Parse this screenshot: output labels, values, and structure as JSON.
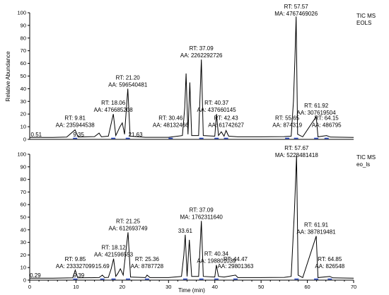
{
  "chart_data": [
    {
      "type": "line",
      "legend": [
        "TIC MS",
        "EOLS"
      ],
      "ylabel": "Relative Abundance",
      "xlim": [
        0,
        70
      ],
      "ylim": [
        0,
        100
      ],
      "xticks": [],
      "yticks": [
        0,
        10,
        20,
        30,
        40,
        50,
        60,
        70,
        80,
        90,
        100
      ],
      "trace": [
        [
          0,
          1.5
        ],
        [
          5,
          1.5
        ],
        [
          8,
          1.8
        ],
        [
          9.8,
          7.5
        ],
        [
          10.5,
          1.8
        ],
        [
          14,
          2.2
        ],
        [
          15,
          5
        ],
        [
          15.5,
          2
        ],
        [
          17,
          2.5
        ],
        [
          18.06,
          20
        ],
        [
          18.6,
          3
        ],
        [
          19,
          6
        ],
        [
          19.5,
          10
        ],
        [
          20,
          13
        ],
        [
          20.5,
          4
        ],
        [
          21.2,
          40
        ],
        [
          21.7,
          2.5
        ],
        [
          25,
          1.6
        ],
        [
          30,
          1.6
        ],
        [
          33,
          3
        ],
        [
          33.5,
          25
        ],
        [
          33.8,
          52
        ],
        [
          34.2,
          4
        ],
        [
          34.6,
          45
        ],
        [
          35,
          3
        ],
        [
          36.5,
          3
        ],
        [
          37.09,
          63
        ],
        [
          37.5,
          3
        ],
        [
          40,
          2.5
        ],
        [
          40.37,
          20
        ],
        [
          40.8,
          3
        ],
        [
          41.4,
          6
        ],
        [
          42,
          2.5
        ],
        [
          42.43,
          7
        ],
        [
          43,
          2.5
        ],
        [
          45,
          2
        ],
        [
          50,
          2
        ],
        [
          55,
          2.2
        ],
        [
          56.5,
          2.5
        ],
        [
          57,
          30
        ],
        [
          57.3,
          62
        ],
        [
          57.57,
          97
        ],
        [
          57.9,
          4
        ],
        [
          59,
          2
        ],
        [
          61.92,
          18
        ],
        [
          62.3,
          2
        ],
        [
          64.15,
          3
        ],
        [
          65,
          1.8
        ],
        [
          70,
          1.5
        ]
      ],
      "annotations": [
        {
          "rt": 9.81,
          "line1": "RT: 9.81",
          "line2": "AA: 235944538"
        },
        {
          "rt": 18.06,
          "line1": "RT: 18.06",
          "line2": "AA: 476685208"
        },
        {
          "rt": 21.2,
          "line1": "RT: 21.20",
          "line2": "AA: 596540481"
        },
        {
          "rt": 30.46,
          "line1": "RT: 30.46",
          "line2": "AA: 48132466"
        },
        {
          "rt": 37.09,
          "line1": "RT: 37.09",
          "line2": "AA: 2262292726"
        },
        {
          "rt": 40.37,
          "line1": "RT: 40.37",
          "line2": "AA: 437660145"
        },
        {
          "rt": 42.43,
          "line1": "RT: 42.43",
          "line2": "AA: 61742627"
        },
        {
          "rt": 55.65,
          "line1": "RT: 55.65",
          "line2": "AA: 874319"
        },
        {
          "rt": 57.57,
          "line1": "RT: 57.57",
          "line2": "MA: 4767469026"
        },
        {
          "rt": 61.92,
          "line1": "RT: 61.92",
          "line2": "AA: 307619504"
        },
        {
          "rt": 64.15,
          "line1": "RT: 64.15",
          "line2": "AA: 486795"
        }
      ],
      "small_labels": [
        "0.51",
        "9.35",
        "21.63"
      ]
    },
    {
      "type": "line",
      "legend": [
        "TIC MS",
        "eo_ls"
      ],
      "xlabel": "Time (min)",
      "xlim": [
        0,
        70
      ],
      "ylim": [
        0,
        100
      ],
      "xticks": [
        0,
        10,
        20,
        30,
        40,
        50,
        60,
        70
      ],
      "yticks": [
        0,
        10,
        20,
        30,
        40,
        50,
        60,
        70,
        80,
        90,
        100
      ],
      "trace": [
        [
          0,
          1.5
        ],
        [
          5,
          1.6
        ],
        [
          9.3,
          1.8
        ],
        [
          9.85,
          8
        ],
        [
          10.4,
          1.8
        ],
        [
          15,
          2
        ],
        [
          15.69,
          4
        ],
        [
          16.2,
          2
        ],
        [
          17,
          2.2
        ],
        [
          17.6,
          9
        ],
        [
          18.12,
          17
        ],
        [
          18.6,
          3
        ],
        [
          19,
          5
        ],
        [
          19.6,
          9
        ],
        [
          20.2,
          4
        ],
        [
          21.25,
          38
        ],
        [
          21.8,
          2.5
        ],
        [
          25,
          2
        ],
        [
          25.36,
          4
        ],
        [
          26,
          2
        ],
        [
          30,
          2
        ],
        [
          32.8,
          3
        ],
        [
          33.3,
          20
        ],
        [
          33.61,
          36
        ],
        [
          34,
          3
        ],
        [
          34.5,
          32
        ],
        [
          35,
          3
        ],
        [
          36.5,
          3
        ],
        [
          37.09,
          47
        ],
        [
          37.5,
          3
        ],
        [
          40,
          2.5
        ],
        [
          40.34,
          12
        ],
        [
          40.8,
          3
        ],
        [
          42,
          2.5
        ],
        [
          44.47,
          4
        ],
        [
          45,
          2
        ],
        [
          50,
          2
        ],
        [
          55,
          2.2
        ],
        [
          56.5,
          3
        ],
        [
          57.2,
          55
        ],
        [
          57.67,
          99
        ],
        [
          58,
          4
        ],
        [
          59,
          2
        ],
        [
          61.91,
          35
        ],
        [
          62.3,
          2
        ],
        [
          64.85,
          3
        ],
        [
          65.5,
          1.8
        ],
        [
          70,
          1.5
        ]
      ],
      "annotations": [
        {
          "rt": 9.85,
          "line1": "RT: 9.85",
          "line2": "AA: 233327099"
        },
        {
          "rt": 15.69,
          "line1": "15.69",
          "line2": ""
        },
        {
          "rt": 18.12,
          "line1": "RT: 18.12",
          "line2": "AA: 421596553"
        },
        {
          "rt": 21.25,
          "line1": "RT: 21.25",
          "line2": "AA: 612693749"
        },
        {
          "rt": 25.36,
          "line1": "RT: 25.36",
          "line2": "AA: 8787728"
        },
        {
          "rt": 33.61,
          "line1": "33.61",
          "line2": ""
        },
        {
          "rt": 37.09,
          "line1": "RT: 37.09",
          "line2": "MA: 1762311640"
        },
        {
          "rt": 40.34,
          "line1": "RT: 40.34",
          "line2": "AA: 198801039"
        },
        {
          "rt": 44.47,
          "line1": "RT: 44.47",
          "line2": "AA: 29801363"
        },
        {
          "rt": 57.67,
          "line1": "RT: 57.67",
          "line2": "MA: 5228481418"
        },
        {
          "rt": 61.91,
          "line1": "RT: 61.91",
          "line2": "AA: 387819481"
        },
        {
          "rt": 64.85,
          "line1": "RT: 64.85",
          "line2": "AA: 826548"
        }
      ],
      "small_labels": [
        "0.29",
        "9.39"
      ]
    }
  ],
  "colors": {
    "trace": "#000000",
    "baseline_marker": "#1f3fbf",
    "leader": "#22aa22"
  }
}
